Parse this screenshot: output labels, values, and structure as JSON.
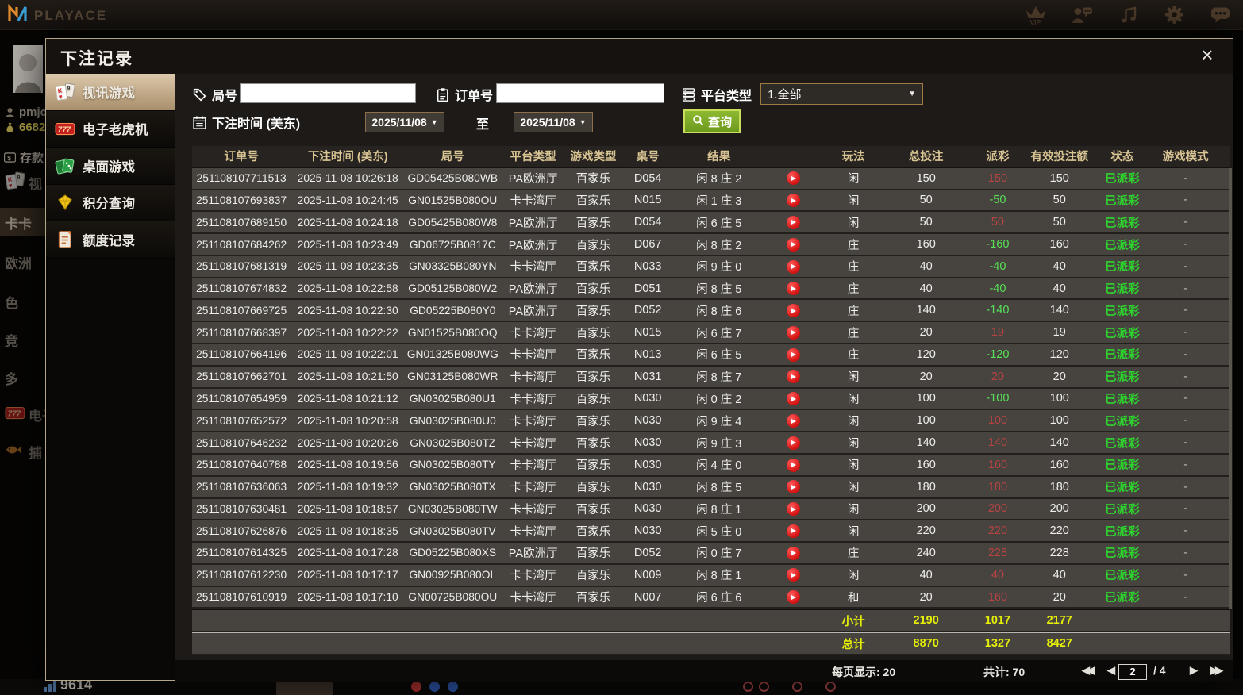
{
  "topbar": {
    "brand": "PLAYACE",
    "vip_label": "VIP"
  },
  "background": {
    "username": "pmjc",
    "balance": "6682",
    "deposit": "存款",
    "menu": [
      {
        "label": "视",
        "icon": "cards-icon"
      },
      {
        "label": "卡卡",
        "hl": true
      },
      {
        "label": "欧洲"
      },
      {
        "label": "色"
      },
      {
        "label": "竞"
      },
      {
        "label": "多"
      },
      {
        "label": "电子",
        "icon": "slots-icon"
      },
      {
        "label": "捕",
        "icon": "fish-icon"
      }
    ],
    "bottom_number": "9614"
  },
  "modal": {
    "title": "下注记录",
    "close_glyph": "×",
    "sidebar": [
      {
        "label": "视讯游戏",
        "icon": "cards-icon",
        "active": true
      },
      {
        "label": "电子老虎机",
        "icon": "slots-icon",
        "active": false
      },
      {
        "label": "桌面游戏",
        "icon": "table-games-icon",
        "active": false
      },
      {
        "label": "积分查询",
        "icon": "points-icon",
        "active": false
      },
      {
        "label": "额度记录",
        "icon": "quota-icon",
        "active": false
      }
    ],
    "filters": {
      "round_label": "局号",
      "round_value": "",
      "order_label": "订单号",
      "order_value": "",
      "platform_label": "平台类型",
      "platform_value": "1.全部",
      "time_label": "下注时间 (美东)",
      "date_from": "2025/11/08",
      "to_label": "至",
      "date_to": "2025/11/08",
      "search_label": "查询"
    },
    "table": {
      "headers": [
        "订单号",
        "下注时间 (美东)",
        "局号",
        "平台类型",
        "游戏类型",
        "桌号",
        "结果",
        "玩法",
        "总投注",
        "派彩",
        "有效投注额",
        "状态",
        "游戏模式"
      ],
      "rows": [
        {
          "order": "251108107711513",
          "time": "2025-11-08 10:26:18",
          "round": "GD05425B080WB",
          "platform": "PA欧洲厅",
          "game": "百家乐",
          "table": "D054",
          "result": "闲 8 庄 2",
          "ptype": "闲",
          "bet": "150",
          "payout": "150",
          "valid": "150",
          "status": "已派彩",
          "mode": "-"
        },
        {
          "order": "251108107693837",
          "time": "2025-11-08 10:24:45",
          "round": "GN01525B080OU",
          "platform": "卡卡湾厅",
          "game": "百家乐",
          "table": "N015",
          "result": "闲 1 庄 3",
          "ptype": "闲",
          "bet": "50",
          "payout": "-50",
          "valid": "50",
          "status": "已派彩",
          "mode": "-"
        },
        {
          "order": "251108107689150",
          "time": "2025-11-08 10:24:18",
          "round": "GD05425B080W8",
          "platform": "PA欧洲厅",
          "game": "百家乐",
          "table": "D054",
          "result": "闲 6 庄 5",
          "ptype": "闲",
          "bet": "50",
          "payout": "50",
          "valid": "50",
          "status": "已派彩",
          "mode": "-"
        },
        {
          "order": "251108107684262",
          "time": "2025-11-08 10:23:49",
          "round": "GD06725B0817C",
          "platform": "PA欧洲厅",
          "game": "百家乐",
          "table": "D067",
          "result": "闲 8 庄 2",
          "ptype": "庄",
          "bet": "160",
          "payout": "-160",
          "valid": "160",
          "status": "已派彩",
          "mode": "-"
        },
        {
          "order": "251108107681319",
          "time": "2025-11-08 10:23:35",
          "round": "GN03325B080YN",
          "platform": "卡卡湾厅",
          "game": "百家乐",
          "table": "N033",
          "result": "闲 9 庄 0",
          "ptype": "庄",
          "bet": "40",
          "payout": "-40",
          "valid": "40",
          "status": "已派彩",
          "mode": "-"
        },
        {
          "order": "251108107674832",
          "time": "2025-11-08 10:22:58",
          "round": "GD05125B080W2",
          "platform": "PA欧洲厅",
          "game": "百家乐",
          "table": "D051",
          "result": "闲 8 庄 5",
          "ptype": "庄",
          "bet": "40",
          "payout": "-40",
          "valid": "40",
          "status": "已派彩",
          "mode": "-"
        },
        {
          "order": "251108107669725",
          "time": "2025-11-08 10:22:30",
          "round": "GD05225B080Y0",
          "platform": "PA欧洲厅",
          "game": "百家乐",
          "table": "D052",
          "result": "闲 8 庄 6",
          "ptype": "庄",
          "bet": "140",
          "payout": "-140",
          "valid": "140",
          "status": "已派彩",
          "mode": "-"
        },
        {
          "order": "251108107668397",
          "time": "2025-11-08 10:22:22",
          "round": "GN01525B080OQ",
          "platform": "卡卡湾厅",
          "game": "百家乐",
          "table": "N015",
          "result": "闲 6 庄 7",
          "ptype": "庄",
          "bet": "20",
          "payout": "19",
          "valid": "19",
          "status": "已派彩",
          "mode": "-"
        },
        {
          "order": "251108107664196",
          "time": "2025-11-08 10:22:01",
          "round": "GN01325B080WG",
          "platform": "卡卡湾厅",
          "game": "百家乐",
          "table": "N013",
          "result": "闲 6 庄 5",
          "ptype": "庄",
          "bet": "120",
          "payout": "-120",
          "valid": "120",
          "status": "已派彩",
          "mode": "-"
        },
        {
          "order": "251108107662701",
          "time": "2025-11-08 10:21:50",
          "round": "GN03125B080WR",
          "platform": "卡卡湾厅",
          "game": "百家乐",
          "table": "N031",
          "result": "闲 8 庄 7",
          "ptype": "闲",
          "bet": "20",
          "payout": "20",
          "valid": "20",
          "status": "已派彩",
          "mode": "-"
        },
        {
          "order": "251108107654959",
          "time": "2025-11-08 10:21:12",
          "round": "GN03025B080U1",
          "platform": "卡卡湾厅",
          "game": "百家乐",
          "table": "N030",
          "result": "闲 0 庄 2",
          "ptype": "闲",
          "bet": "100",
          "payout": "-100",
          "valid": "100",
          "status": "已派彩",
          "mode": "-"
        },
        {
          "order": "251108107652572",
          "time": "2025-11-08 10:20:58",
          "round": "GN03025B080U0",
          "platform": "卡卡湾厅",
          "game": "百家乐",
          "table": "N030",
          "result": "闲 9 庄 4",
          "ptype": "闲",
          "bet": "100",
          "payout": "100",
          "valid": "100",
          "status": "已派彩",
          "mode": "-"
        },
        {
          "order": "251108107646232",
          "time": "2025-11-08 10:20:26",
          "round": "GN03025B080TZ",
          "platform": "卡卡湾厅",
          "game": "百家乐",
          "table": "N030",
          "result": "闲 9 庄 3",
          "ptype": "闲",
          "bet": "140",
          "payout": "140",
          "valid": "140",
          "status": "已派彩",
          "mode": "-"
        },
        {
          "order": "251108107640788",
          "time": "2025-11-08 10:19:56",
          "round": "GN03025B080TY",
          "platform": "卡卡湾厅",
          "game": "百家乐",
          "table": "N030",
          "result": "闲 4 庄 0",
          "ptype": "闲",
          "bet": "160",
          "payout": "160",
          "valid": "160",
          "status": "已派彩",
          "mode": "-"
        },
        {
          "order": "251108107636063",
          "time": "2025-11-08 10:19:32",
          "round": "GN03025B080TX",
          "platform": "卡卡湾厅",
          "game": "百家乐",
          "table": "N030",
          "result": "闲 8 庄 5",
          "ptype": "闲",
          "bet": "180",
          "payout": "180",
          "valid": "180",
          "status": "已派彩",
          "mode": "-"
        },
        {
          "order": "251108107630481",
          "time": "2025-11-08 10:18:57",
          "round": "GN03025B080TW",
          "platform": "卡卡湾厅",
          "game": "百家乐",
          "table": "N030",
          "result": "闲 8 庄 1",
          "ptype": "闲",
          "bet": "200",
          "payout": "200",
          "valid": "200",
          "status": "已派彩",
          "mode": "-"
        },
        {
          "order": "251108107626876",
          "time": "2025-11-08 10:18:35",
          "round": "GN03025B080TV",
          "platform": "卡卡湾厅",
          "game": "百家乐",
          "table": "N030",
          "result": "闲 5 庄 0",
          "ptype": "闲",
          "bet": "220",
          "payout": "220",
          "valid": "220",
          "status": "已派彩",
          "mode": "-"
        },
        {
          "order": "251108107614325",
          "time": "2025-11-08 10:17:28",
          "round": "GD05225B080XS",
          "platform": "PA欧洲厅",
          "game": "百家乐",
          "table": "D052",
          "result": "闲 0 庄 7",
          "ptype": "庄",
          "bet": "240",
          "payout": "228",
          "valid": "228",
          "status": "已派彩",
          "mode": "-"
        },
        {
          "order": "251108107612230",
          "time": "2025-11-08 10:17:17",
          "round": "GN00925B080OL",
          "platform": "卡卡湾厅",
          "game": "百家乐",
          "table": "N009",
          "result": "闲 8 庄 1",
          "ptype": "闲",
          "bet": "40",
          "payout": "40",
          "valid": "40",
          "status": "已派彩",
          "mode": "-"
        },
        {
          "order": "251108107610919",
          "time": "2025-11-08 10:17:10",
          "round": "GN00725B080OU",
          "platform": "卡卡湾厅",
          "game": "百家乐",
          "table": "N007",
          "result": "闲 6 庄 6",
          "ptype": "和",
          "bet": "20",
          "payout": "160",
          "valid": "20",
          "status": "已派彩",
          "mode": "-"
        }
      ],
      "subtotal": {
        "label": "小计",
        "bet": "2190",
        "payout": "1017",
        "valid": "2177"
      },
      "total": {
        "label": "总计",
        "bet": "8870",
        "payout": "1327",
        "valid": "8427"
      }
    },
    "pagination": {
      "per_page": "每页显示: 20",
      "total_count": "共计: 70",
      "current_page": "2",
      "of_pages": "/  4"
    }
  }
}
